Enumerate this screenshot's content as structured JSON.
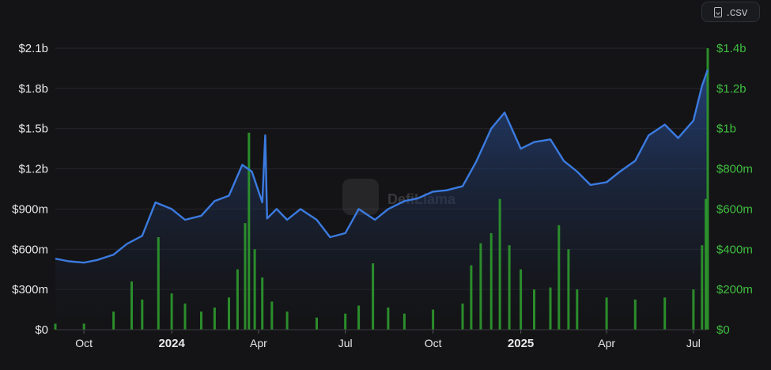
{
  "toolbar": {
    "csv_label": ".csv",
    "csv_icon": "download-file-icon"
  },
  "watermark": {
    "text": "DefiLlama",
    "icon": "llama-logo-icon"
  },
  "chart_data": {
    "type": "line",
    "title": "",
    "x_range": [
      "2023-09-01",
      "2025-07-16"
    ],
    "x_ticks": [
      {
        "date": "2023-10-01",
        "label": "Oct",
        "bold": false
      },
      {
        "date": "2024-01-01",
        "label": "2024",
        "bold": true
      },
      {
        "date": "2024-04-01",
        "label": "Apr",
        "bold": false
      },
      {
        "date": "2024-07-01",
        "label": "Jul",
        "bold": false
      },
      {
        "date": "2024-10-01",
        "label": "Oct",
        "bold": false
      },
      {
        "date": "2025-01-01",
        "label": "2025",
        "bold": true
      },
      {
        "date": "2025-04-01",
        "label": "Apr",
        "bold": false
      },
      {
        "date": "2025-07-01",
        "label": "Jul",
        "bold": false
      }
    ],
    "left_axis": {
      "ylim": [
        0,
        2100000000
      ],
      "ticks": [
        {
          "value": 0,
          "label": "$0"
        },
        {
          "value": 300000000,
          "label": "$300m"
        },
        {
          "value": 600000000,
          "label": "$600m"
        },
        {
          "value": 900000000,
          "label": "$900m"
        },
        {
          "value": 1200000000,
          "label": "$1.2b"
        },
        {
          "value": 1500000000,
          "label": "$1.5b"
        },
        {
          "value": 1800000000,
          "label": "$1.8b"
        },
        {
          "value": 2100000000,
          "label": "$2.1b"
        }
      ],
      "color": "#e8e8ea"
    },
    "right_axis": {
      "ylim": [
        0,
        1400000000
      ],
      "ticks": [
        {
          "value": 0,
          "label": "$0"
        },
        {
          "value": 200000000,
          "label": "$200m"
        },
        {
          "value": 400000000,
          "label": "$400m"
        },
        {
          "value": 600000000,
          "label": "$600m"
        },
        {
          "value": 800000000,
          "label": "$800m"
        },
        {
          "value": 1000000000,
          "label": "$1b"
        },
        {
          "value": 1200000000,
          "label": "$1.2b"
        },
        {
          "value": 1400000000,
          "label": "$1.4b"
        }
      ],
      "color": "#3fbf3f"
    },
    "grid": true,
    "series": [
      {
        "kind": "area-line",
        "axis": "left",
        "color": "#3b7be0",
        "points": [
          [
            "2023-09-01",
            530000000
          ],
          [
            "2023-09-15",
            510000000
          ],
          [
            "2023-10-01",
            500000000
          ],
          [
            "2023-10-15",
            520000000
          ],
          [
            "2023-11-01",
            560000000
          ],
          [
            "2023-11-15",
            640000000
          ],
          [
            "2023-12-01",
            700000000
          ],
          [
            "2023-12-15",
            950000000
          ],
          [
            "2024-01-01",
            900000000
          ],
          [
            "2024-01-15",
            820000000
          ],
          [
            "2024-02-01",
            850000000
          ],
          [
            "2024-02-15",
            960000000
          ],
          [
            "2024-03-01",
            1000000000
          ],
          [
            "2024-03-15",
            1230000000
          ],
          [
            "2024-03-25",
            1180000000
          ],
          [
            "2024-04-05",
            950000000
          ],
          [
            "2024-04-08",
            1450000000
          ],
          [
            "2024-04-10",
            830000000
          ],
          [
            "2024-04-20",
            900000000
          ],
          [
            "2024-05-01",
            820000000
          ],
          [
            "2024-05-15",
            900000000
          ],
          [
            "2024-06-01",
            820000000
          ],
          [
            "2024-06-15",
            690000000
          ],
          [
            "2024-07-01",
            720000000
          ],
          [
            "2024-07-15",
            900000000
          ],
          [
            "2024-08-01",
            820000000
          ],
          [
            "2024-08-15",
            900000000
          ],
          [
            "2024-09-01",
            960000000
          ],
          [
            "2024-09-15",
            980000000
          ],
          [
            "2024-10-01",
            1030000000
          ],
          [
            "2024-10-15",
            1040000000
          ],
          [
            "2024-11-01",
            1070000000
          ],
          [
            "2024-11-15",
            1250000000
          ],
          [
            "2024-12-01",
            1500000000
          ],
          [
            "2024-12-15",
            1620000000
          ],
          [
            "2025-01-01",
            1350000000
          ],
          [
            "2025-01-15",
            1400000000
          ],
          [
            "2025-02-01",
            1420000000
          ],
          [
            "2025-02-15",
            1260000000
          ],
          [
            "2025-03-01",
            1180000000
          ],
          [
            "2025-03-15",
            1080000000
          ],
          [
            "2025-04-01",
            1100000000
          ],
          [
            "2025-04-15",
            1180000000
          ],
          [
            "2025-05-01",
            1260000000
          ],
          [
            "2025-05-15",
            1450000000
          ],
          [
            "2025-06-01",
            1530000000
          ],
          [
            "2025-06-15",
            1430000000
          ],
          [
            "2025-07-01",
            1560000000
          ],
          [
            "2025-07-10",
            1820000000
          ],
          [
            "2025-07-16",
            1940000000
          ]
        ]
      },
      {
        "kind": "bar",
        "axis": "right",
        "color": "#2e9a2e",
        "points": [
          [
            "2023-09-01",
            30000000
          ],
          [
            "2023-10-01",
            30000000
          ],
          [
            "2023-11-01",
            90000000
          ],
          [
            "2023-11-20",
            240000000
          ],
          [
            "2023-12-01",
            150000000
          ],
          [
            "2023-12-18",
            460000000
          ],
          [
            "2024-01-01",
            180000000
          ],
          [
            "2024-01-15",
            130000000
          ],
          [
            "2024-02-01",
            90000000
          ],
          [
            "2024-02-15",
            110000000
          ],
          [
            "2024-03-01",
            160000000
          ],
          [
            "2024-03-10",
            300000000
          ],
          [
            "2024-03-18",
            530000000
          ],
          [
            "2024-03-22",
            980000000
          ],
          [
            "2024-03-28",
            400000000
          ],
          [
            "2024-04-05",
            260000000
          ],
          [
            "2024-04-15",
            140000000
          ],
          [
            "2024-05-01",
            90000000
          ],
          [
            "2024-06-01",
            60000000
          ],
          [
            "2024-07-01",
            80000000
          ],
          [
            "2024-07-15",
            120000000
          ],
          [
            "2024-07-30",
            330000000
          ],
          [
            "2024-08-15",
            110000000
          ],
          [
            "2024-09-01",
            80000000
          ],
          [
            "2024-10-01",
            100000000
          ],
          [
            "2024-11-01",
            130000000
          ],
          [
            "2024-11-10",
            320000000
          ],
          [
            "2024-11-20",
            430000000
          ],
          [
            "2024-12-01",
            480000000
          ],
          [
            "2024-12-10",
            650000000
          ],
          [
            "2024-12-20",
            420000000
          ],
          [
            "2025-01-01",
            300000000
          ],
          [
            "2025-01-15",
            200000000
          ],
          [
            "2025-02-01",
            210000000
          ],
          [
            "2025-02-10",
            520000000
          ],
          [
            "2025-02-20",
            400000000
          ],
          [
            "2025-03-01",
            200000000
          ],
          [
            "2025-04-01",
            160000000
          ],
          [
            "2025-05-01",
            150000000
          ],
          [
            "2025-06-01",
            160000000
          ],
          [
            "2025-07-01",
            200000000
          ],
          [
            "2025-07-10",
            420000000
          ],
          [
            "2025-07-14",
            650000000
          ],
          [
            "2025-07-16",
            1400000000
          ]
        ]
      }
    ]
  }
}
